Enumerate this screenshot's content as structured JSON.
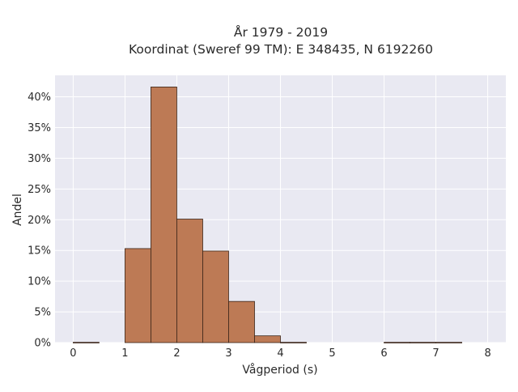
{
  "chart_data": {
    "type": "bar",
    "title_line1": "År 1979 - 2019",
    "title_line2": "Koordinat (Sweref 99 TM): E 348435, N 6192260",
    "xlabel": "Vågperiod (s)",
    "ylabel": "Andel",
    "xlim": [
      -0.35,
      8.35
    ],
    "ylim": [
      0,
      43.5
    ],
    "x_ticks": [
      0,
      1,
      2,
      3,
      4,
      5,
      6,
      7,
      8
    ],
    "y_ticks": [
      0,
      5,
      10,
      15,
      20,
      25,
      30,
      35,
      40
    ],
    "y_tick_labels": [
      "0%",
      "5%",
      "10%",
      "15%",
      "20%",
      "25%",
      "30%",
      "35%",
      "40%"
    ],
    "x_tick_labels": [
      "0",
      "1",
      "2",
      "3",
      "4",
      "5",
      "6",
      "7",
      "8"
    ],
    "bin_width": 0.5,
    "bins": [
      {
        "x0": 0.0,
        "value": 0.05
      },
      {
        "x0": 0.5,
        "value": 0
      },
      {
        "x0": 1.0,
        "value": 15.3
      },
      {
        "x0": 1.5,
        "value": 41.6
      },
      {
        "x0": 2.0,
        "value": 20.1
      },
      {
        "x0": 2.5,
        "value": 14.9
      },
      {
        "x0": 3.0,
        "value": 6.7
      },
      {
        "x0": 3.5,
        "value": 1.1
      },
      {
        "x0": 4.0,
        "value": 0.05
      },
      {
        "x0": 4.5,
        "value": 0
      },
      {
        "x0": 5.0,
        "value": 0
      },
      {
        "x0": 5.5,
        "value": 0
      },
      {
        "x0": 6.0,
        "value": 0.05
      },
      {
        "x0": 6.5,
        "value": 0.05
      },
      {
        "x0": 7.0,
        "value": 0.05
      },
      {
        "x0": 7.5,
        "value": 0
      }
    ],
    "grid": true,
    "colors": {
      "bar_fill": "#bd7a55",
      "bar_stroke": "#3a2418",
      "plot_bg": "#e9e9f2",
      "grid": "#ffffff"
    }
  }
}
